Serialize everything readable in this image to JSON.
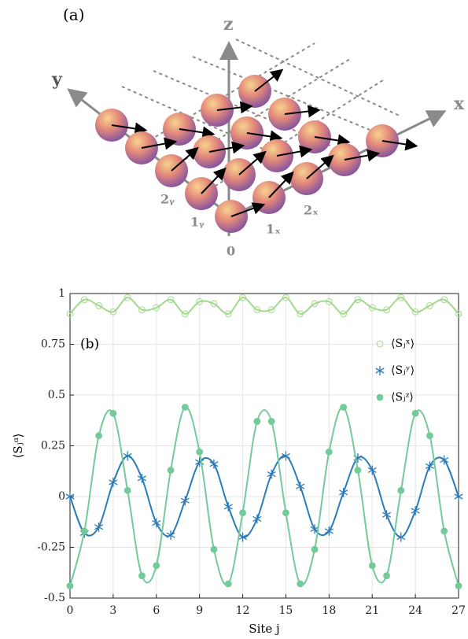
{
  "diagram": {
    "panel_label": "(a)",
    "axes": {
      "x": "x",
      "y": "y",
      "z": "z"
    },
    "site_labels": {
      "origin": "0",
      "x1": "1ₓ",
      "x2": "2ₓ",
      "y1": "1ᵧ",
      "y2": "2ᵧ"
    }
  },
  "chart_data": {
    "type": "line",
    "panel_label": "(b)",
    "xlabel": "Site j",
    "ylabel": "⟨Sⱼᵅ⟩",
    "x": [
      0,
      1,
      2,
      3,
      4,
      5,
      6,
      7,
      8,
      9,
      10,
      11,
      12,
      13,
      14,
      15,
      16,
      17,
      18,
      19,
      20,
      21,
      22,
      23,
      24,
      25,
      26,
      27
    ],
    "series": [
      {
        "name": "⟨Sⱼˣ⟩",
        "color": "#a3d98c",
        "marker": "open-circle",
        "values": [
          0.9,
          0.97,
          0.94,
          0.91,
          0.98,
          0.92,
          0.93,
          0.97,
          0.9,
          0.96,
          0.95,
          0.9,
          0.98,
          0.92,
          0.92,
          0.98,
          0.9,
          0.95,
          0.96,
          0.9,
          0.97,
          0.93,
          0.92,
          0.98,
          0.91,
          0.94,
          0.97,
          0.9
        ]
      },
      {
        "name": "⟨Sⱼʸ⟩",
        "color": "#2b7bb9",
        "marker": "star",
        "values": [
          0,
          -0.18,
          -0.15,
          0.07,
          0.2,
          0.09,
          -0.13,
          -0.19,
          -0.02,
          0.17,
          0.16,
          -0.05,
          -0.2,
          -0.11,
          0.11,
          0.2,
          0.05,
          -0.16,
          -0.17,
          0.02,
          0.19,
          0.13,
          -0.09,
          -0.2,
          -0.07,
          0.15,
          0.18,
          0
        ]
      },
      {
        "name": "⟨Sⱼᶻ⟩",
        "color": "#72cb98",
        "marker": "dot",
        "values": [
          -0.44,
          -0.17,
          0.3,
          0.41,
          0.03,
          -0.39,
          -0.34,
          0.13,
          0.44,
          0.22,
          -0.26,
          -0.43,
          -0.08,
          0.37,
          0.37,
          -0.08,
          -0.43,
          -0.26,
          0.22,
          0.44,
          0.13,
          -0.34,
          -0.39,
          0.03,
          0.41,
          0.3,
          -0.17,
          -0.44
        ]
      }
    ],
    "xlim": [
      0,
      27
    ],
    "xticks": [
      0,
      3,
      6,
      9,
      12,
      15,
      18,
      21,
      24,
      27
    ],
    "ylim": [
      -0.5,
      1
    ],
    "yticks": [
      -0.5,
      -0.25,
      0,
      0.25,
      0.5,
      0.75,
      1
    ],
    "grid": true,
    "legend": "right"
  }
}
